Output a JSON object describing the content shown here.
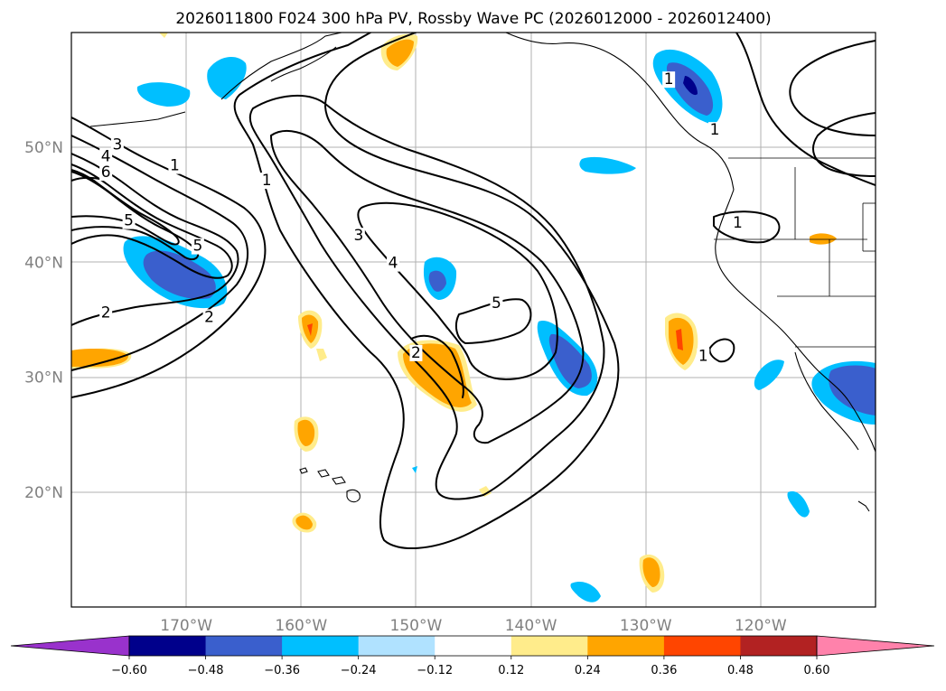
{
  "title": "2026011800 F024 300 hPa PV, Rossby Wave PC (2026012000 - 2026012400)",
  "map": {
    "projection": "cylindrical",
    "extent_lon": [
      -180,
      -110
    ],
    "extent_lat": [
      10,
      60
    ],
    "lon_ticks": [
      {
        "lon": -170,
        "label": "170°W"
      },
      {
        "lon": -160,
        "label": "160°W"
      },
      {
        "lon": -150,
        "label": "150°W"
      },
      {
        "lon": -140,
        "label": "140°W"
      },
      {
        "lon": -130,
        "label": "130°W"
      },
      {
        "lon": -120,
        "label": "120°W"
      }
    ],
    "lat_ticks": [
      {
        "lat": 50,
        "label": "50°N"
      },
      {
        "lat": 40,
        "label": "40°N"
      },
      {
        "lat": 30,
        "label": "30°N"
      },
      {
        "lat": 20,
        "label": "20°N"
      }
    ],
    "pv_contour_labels": [
      {
        "text": "3",
        "lon": -176,
        "lat": 50.2
      },
      {
        "text": "4",
        "lon": -177,
        "lat": 49.2
      },
      {
        "text": "6",
        "lon": -177,
        "lat": 47.8
      },
      {
        "text": "1",
        "lon": -171,
        "lat": 48.4
      },
      {
        "text": "1",
        "lon": -163,
        "lat": 47.1
      },
      {
        "text": "5",
        "lon": -175,
        "lat": 43.6
      },
      {
        "text": "5",
        "lon": -169,
        "lat": 41.4
      },
      {
        "text": "2",
        "lon": -177,
        "lat": 35.6
      },
      {
        "text": "2",
        "lon": -168,
        "lat": 35.2
      },
      {
        "text": "3",
        "lon": -155,
        "lat": 42.3
      },
      {
        "text": "4",
        "lon": -152,
        "lat": 39.9
      },
      {
        "text": "5",
        "lon": -143,
        "lat": 36.4
      },
      {
        "text": "2",
        "lon": -150,
        "lat": 32.1
      },
      {
        "text": "1",
        "lon": -128,
        "lat": 55.9
      },
      {
        "text": "1",
        "lon": -124,
        "lat": 51.5
      },
      {
        "text": "1",
        "lon": -122,
        "lat": 43.4
      },
      {
        "text": "1",
        "lon": -125,
        "lat": 31.8
      }
    ]
  },
  "colorbar": {
    "levels": [
      -0.6,
      -0.48,
      -0.36,
      -0.24,
      -0.12,
      0.12,
      0.24,
      0.36,
      0.48,
      0.6
    ],
    "tick_labels": [
      "−0.60",
      "−0.48",
      "−0.36",
      "−0.24",
      "−0.12",
      "0.12",
      "0.24",
      "0.36",
      "0.48",
      "0.60"
    ],
    "colors": [
      "#9932cc",
      "#00008b",
      "#3a5fcd",
      "#00bfff",
      "#b0e2ff",
      "#ffffff",
      "#ffec8b",
      "#ffa500",
      "#ff4500",
      "#b22222",
      "#ff82ab"
    ],
    "extend": "both"
  }
}
